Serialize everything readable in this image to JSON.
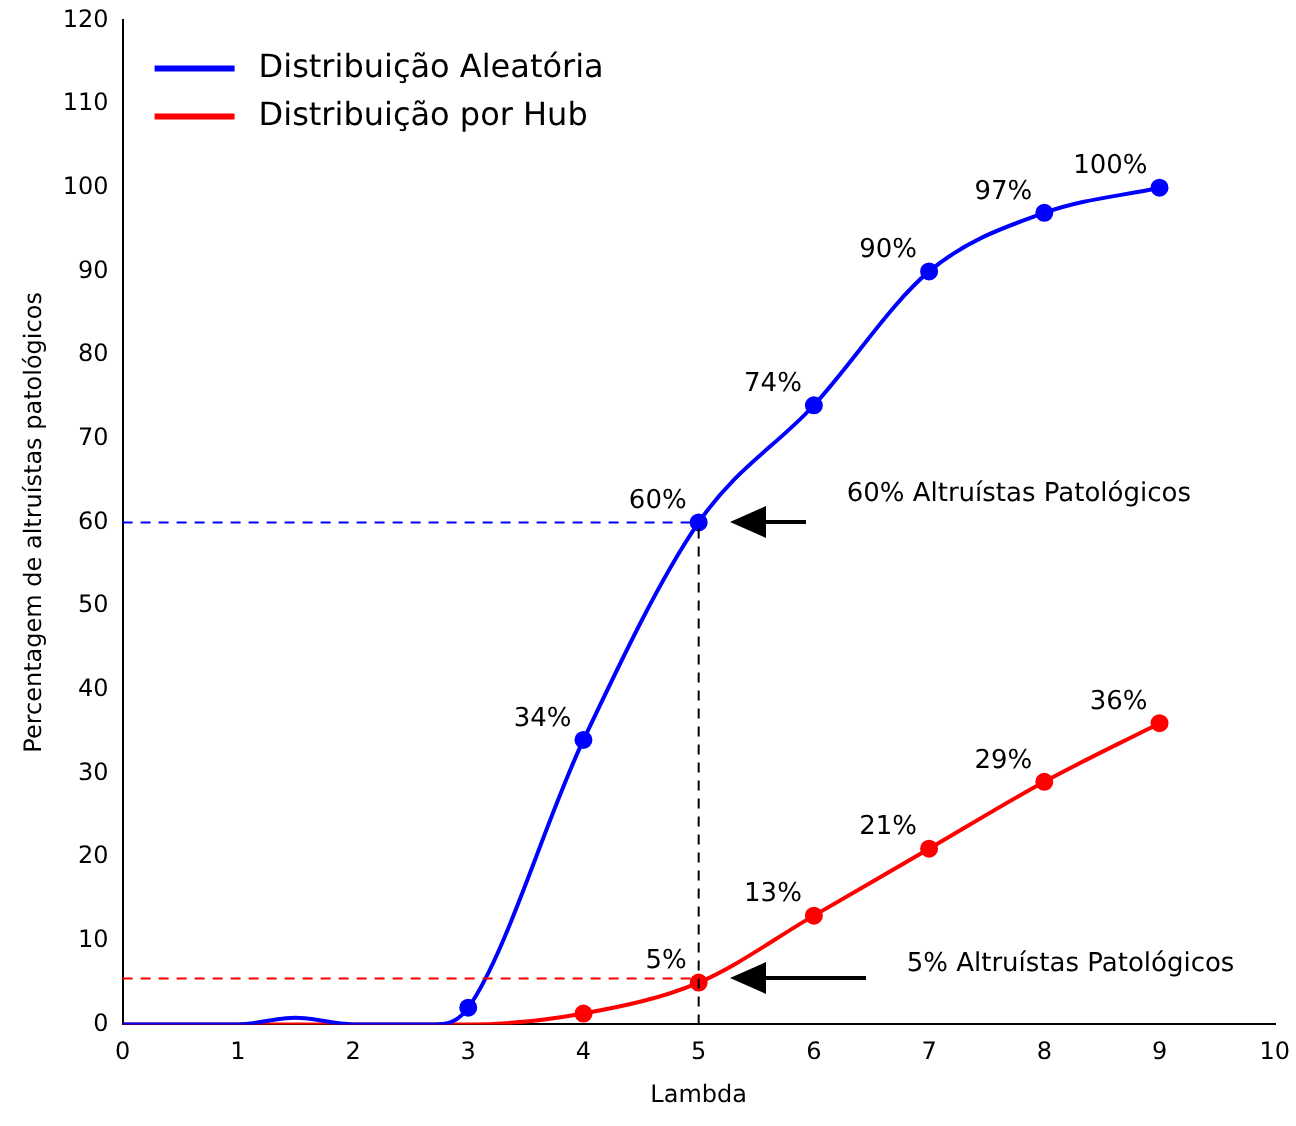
{
  "chart_data": {
    "type": "line",
    "xlabel": "Lambda",
    "ylabel": "Percentagem de altruístas patológicos",
    "xlim": [
      0,
      10
    ],
    "xticks": [
      0,
      1,
      2,
      3,
      4,
      5,
      6,
      7,
      8,
      9,
      10
    ],
    "ylim": [
      0,
      120
    ],
    "yticks": [
      0,
      10,
      20,
      30,
      40,
      50,
      60,
      70,
      80,
      90,
      100,
      110,
      120
    ],
    "grid": false,
    "legend": "top left",
    "marker": "circle",
    "series": [
      {
        "name": "Distribuição Aleatória",
        "type": "line",
        "marker": "none",
        "color": "#0000ff",
        "x": [
          0,
          1,
          1.5,
          2,
          2.7,
          3,
          4,
          5,
          6,
          7,
          8,
          9
        ],
        "values": [
          0,
          0,
          0.8,
          0,
          0,
          2,
          34,
          60,
          74,
          90,
          97,
          100
        ]
      },
      {
        "name": "Distribuição por Hub",
        "type": "line",
        "marker": "none",
        "color": "#ff0000",
        "x": [
          0,
          1,
          2,
          3,
          4,
          5,
          6,
          7,
          8,
          9
        ],
        "values": [
          0,
          0,
          0,
          0,
          1.3,
          5,
          13,
          21,
          29,
          36
        ]
      },
      {
        "type": "scatter",
        "color": "#0000ff",
        "x": [
          3,
          4,
          5,
          6,
          7,
          8,
          9
        ],
        "values": [
          2,
          34,
          60,
          74,
          90,
          97,
          100
        ],
        "value_labels": [
          null,
          "34%",
          "60%",
          "74%",
          "90%",
          "97%",
          "100%"
        ]
      },
      {
        "type": "scatter",
        "color": "#ff0000",
        "x": [
          4,
          5,
          6,
          7,
          8,
          9
        ],
        "values": [
          1.3,
          5,
          13,
          21,
          29,
          36
        ],
        "value_labels": [
          null,
          "5%",
          "13%",
          "21%",
          "29%",
          "36%"
        ]
      }
    ],
    "ref_lines": [
      {
        "axis": "y",
        "value": 60,
        "color": "#0000ff",
        "line_style": "dashed"
      },
      {
        "axis": "y",
        "value": 5.5,
        "color": "#ff0000",
        "line_style": "dashed"
      },
      {
        "axis": "x",
        "value": 5,
        "color": "#000000",
        "line_style": "dashed"
      }
    ],
    "annotations": [
      "60% Altruístas Patológicos",
      "5% Altruístas Patológicos"
    ]
  }
}
